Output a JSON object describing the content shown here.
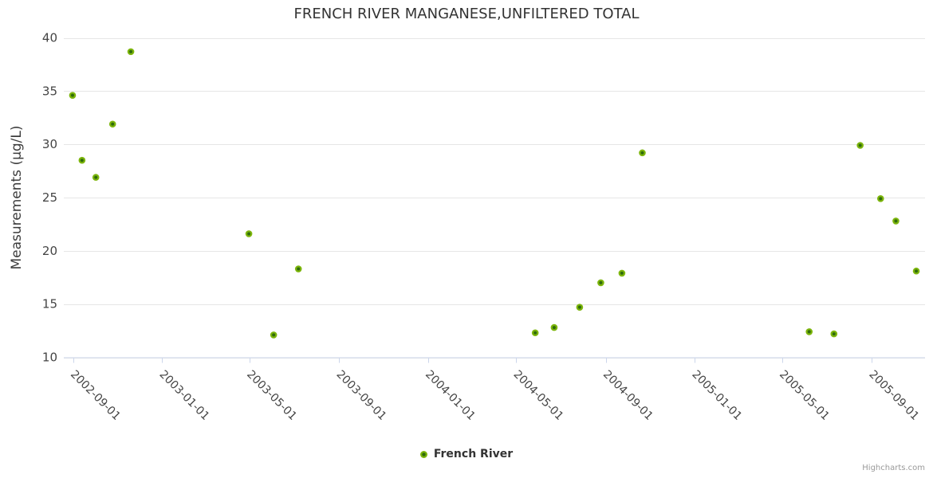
{
  "chart_data": {
    "type": "scatter",
    "title": "FRENCH RIVER MANGANESE,UNFILTERED TOTAL",
    "xlabel": "",
    "ylabel": "Measurements (µg/L)",
    "credits": "Highcharts.com",
    "legend": {
      "position": "bottom-center"
    },
    "grid": "horizontal-only",
    "ylim": [
      10,
      40
    ],
    "yticks": [
      40,
      35,
      30,
      25,
      20,
      15,
      10
    ],
    "xlim": [
      "2002-08-19",
      "2005-11-13"
    ],
    "xticks": [
      "2002-09-01",
      "2003-01-01",
      "2003-05-01",
      "2003-09-01",
      "2004-01-01",
      "2004-05-01",
      "2004-09-01",
      "2005-01-01",
      "2005-05-01",
      "2005-09-01"
    ],
    "series": [
      {
        "name": "French River",
        "data": [
          {
            "date": "2002-08-31",
            "value": 34.6
          },
          {
            "date": "2002-09-13",
            "value": 28.5
          },
          {
            "date": "2002-10-02",
            "value": 26.9
          },
          {
            "date": "2002-10-25",
            "value": 31.9
          },
          {
            "date": "2002-11-19",
            "value": 38.7
          },
          {
            "date": "2003-04-30",
            "value": 21.6
          },
          {
            "date": "2003-06-03",
            "value": 12.1
          },
          {
            "date": "2003-07-07",
            "value": 18.3
          },
          {
            "date": "2004-05-27",
            "value": 12.3
          },
          {
            "date": "2004-06-22",
            "value": 12.8
          },
          {
            "date": "2004-07-27",
            "value": 14.7
          },
          {
            "date": "2004-08-25",
            "value": 17.0
          },
          {
            "date": "2004-09-23",
            "value": 17.9
          },
          {
            "date": "2004-10-21",
            "value": 29.2
          },
          {
            "date": "2005-06-07",
            "value": 12.4
          },
          {
            "date": "2005-07-11",
            "value": 12.2
          },
          {
            "date": "2005-08-16",
            "value": 29.9
          },
          {
            "date": "2005-09-13",
            "value": 24.9
          },
          {
            "date": "2005-10-04",
            "value": 22.8
          },
          {
            "date": "2005-11-01",
            "value": 18.1
          }
        ]
      }
    ],
    "colors": {
      "marker_outer": "#7cb50c",
      "marker_inner": "#2f6b0b",
      "grid": "#e6e6e6",
      "axis_line": "#ccd6eb",
      "title": "#333333",
      "labels": "#444444",
      "legend_text": "#333333",
      "credits": "#999999",
      "background": "#ffffff"
    }
  }
}
